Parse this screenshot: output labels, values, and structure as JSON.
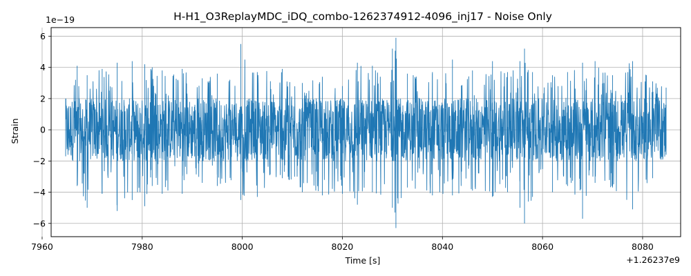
{
  "chart_data": {
    "type": "line",
    "title": "H-H1_O3ReplayMDC_iDQ_combo-1262374912-4096_inj17 - Noise Only",
    "xlabel": "Time [s]",
    "ylabel": "Strain",
    "x_offset_text": "+1.26237e9",
    "y_scale_text": "1e−19",
    "xlim": [
      7961.8,
      8087.6
    ],
    "ylim": [
      -6.85,
      6.55
    ],
    "x_ticks": [
      7960,
      7980,
      8000,
      8020,
      8040,
      8060,
      8080
    ],
    "x_tick_labels": [
      "7960",
      "7980",
      "8000",
      "8020",
      "8040",
      "8060",
      "8080"
    ],
    "y_ticks": [
      -6,
      -4,
      -2,
      0,
      2,
      4,
      6
    ],
    "y_tick_labels": [
      "−6",
      "−4",
      "−2",
      "0",
      "2",
      "4",
      "6"
    ],
    "grid": true,
    "series": [
      {
        "color": "#1f77b4",
        "x_start": 7964.7,
        "x_end": 8084.7,
        "baseline": 0,
        "typical_band": [
          -2.0,
          2.0
        ],
        "envelope": {
          "x": [
            7964.7,
            7967.0,
            7969.0,
            7972.0,
            7975.0,
            7978.0,
            7980.5,
            7982.0,
            7984.0,
            7988.0,
            7992.0,
            7995.0,
            7999.7,
            8003.0,
            8008.0,
            8012.0,
            8016.0,
            8020.0,
            8023.0,
            8026.0,
            8030.0,
            8030.7,
            8033.0,
            8038.0,
            8042.0,
            8046.0,
            8050.0,
            8053.0,
            8055.5,
            8056.4,
            8058.0,
            8062.0,
            8065.0,
            8068.0,
            8070.5,
            8074.0,
            8078.0,
            8082.0,
            8084.7
          ],
          "max": [
            2.0,
            4.1,
            3.5,
            3.9,
            4.3,
            4.4,
            4.2,
            4.0,
            3.8,
            3.9,
            3.3,
            3.6,
            5.5,
            3.7,
            3.9,
            3.0,
            3.4,
            2.8,
            4.3,
            4.1,
            5.2,
            5.9,
            3.6,
            3.7,
            4.5,
            3.8,
            4.4,
            3.7,
            4.4,
            5.2,
            3.7,
            3.5,
            3.7,
            4.3,
            4.4,
            3.5,
            4.4,
            3.1,
            2.7
          ],
          "min": [
            -1.7,
            -3.6,
            -5.0,
            -4.1,
            -5.2,
            -4.5,
            -4.9,
            -3.6,
            -4.1,
            -4.1,
            -3.4,
            -3.6,
            -4.5,
            -4.3,
            -3.1,
            -4.0,
            -4.2,
            -4.1,
            -4.8,
            -4.0,
            -5.0,
            -6.3,
            -3.7,
            -4.2,
            -4.2,
            -3.9,
            -4.3,
            -4.0,
            -5.0,
            -6.0,
            -4.3,
            -4.0,
            -3.6,
            -5.7,
            -3.4,
            -3.7,
            -5.1,
            -3.1,
            -1.6
          ]
        }
      }
    ]
  }
}
